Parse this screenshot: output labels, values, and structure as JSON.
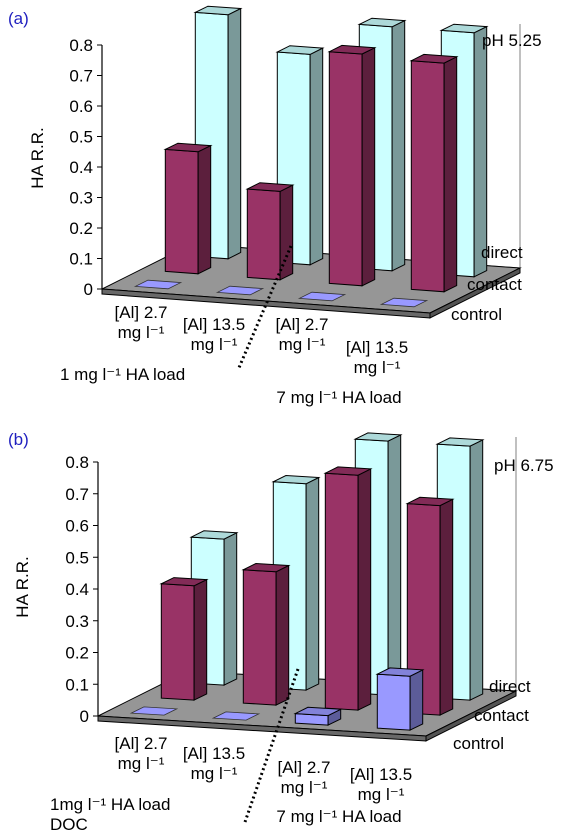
{
  "chart_data": [
    {
      "type": "bar",
      "panel_label": "(a)",
      "condition": "pH 5.25",
      "ylabel": "HA R.R.",
      "ylim": [
        0,
        0.8
      ],
      "yticks": [
        "0",
        "0.1",
        "0.2",
        "0.3",
        "0.4",
        "0.5",
        "0.6",
        "0.7",
        "0.8"
      ],
      "categories": [
        [
          "[Al] 2.7",
          "mg l⁻¹"
        ],
        [
          "[Al] 13.5",
          "mg l⁻¹"
        ],
        [
          "[Al] 2.7",
          "mg l⁻¹"
        ],
        [
          "[Al] 13.5",
          "mg l⁻¹"
        ]
      ],
      "group_labels": [
        [
          "1 mg l⁻¹ HA load"
        ],
        [
          "7 mg l⁻¹ HA load"
        ]
      ],
      "depth_labels": [
        "direct",
        "contact",
        "control"
      ],
      "series": [
        {
          "name": "control",
          "values": [
            0,
            0,
            0,
            0
          ]
        },
        {
          "name": "contact",
          "values": [
            0.4,
            0.29,
            0.76,
            0.75
          ]
        },
        {
          "name": "direct",
          "values": [
            0.8,
            0.69,
            0.8,
            0.8
          ]
        }
      ],
      "colors": {
        "control": "#9999ff",
        "contact": "#993366",
        "direct": "#ccffff",
        "floor": "#969696"
      }
    },
    {
      "type": "bar",
      "panel_label": "(b)",
      "condition": "pH 6.75",
      "ylabel": "HA R.R.",
      "ylim": [
        0,
        0.8
      ],
      "yticks": [
        "0",
        "0.1",
        "0.2",
        "0.3",
        "0.4",
        "0.5",
        "0.6",
        "0.7",
        "0.8"
      ],
      "categories": [
        [
          "[Al] 2.7",
          "mg l⁻¹"
        ],
        [
          "[Al] 13.5",
          "mg l⁻¹"
        ],
        [
          "[Al] 2.7",
          "mg l⁻¹"
        ],
        [
          "[Al] 13.5",
          "mg l⁻¹"
        ]
      ],
      "group_labels": [
        [
          "1mg l⁻¹ HA load",
          "DOC"
        ],
        [
          "7 mg l⁻¹ HA load"
        ]
      ],
      "depth_labels": [
        "direct",
        "contact",
        "control"
      ],
      "series": [
        {
          "name": "control",
          "values": [
            0,
            0,
            0.03,
            0.17
          ]
        },
        {
          "name": "contact",
          "values": [
            0.36,
            0.42,
            0.74,
            0.66
          ]
        },
        {
          "name": "direct",
          "values": [
            0.46,
            0.65,
            0.8,
            0.8
          ]
        }
      ],
      "colors": {
        "control": "#9999ff",
        "contact": "#993366",
        "direct": "#ccffff",
        "floor": "#969696"
      }
    }
  ]
}
